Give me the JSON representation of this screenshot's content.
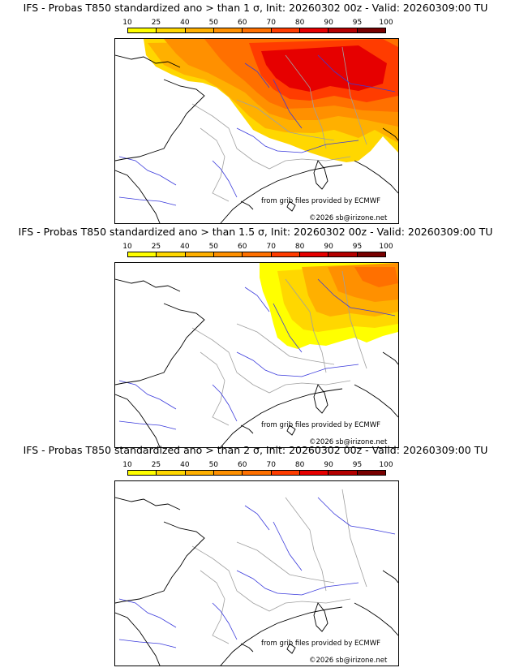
{
  "colorbar": {
    "ticks": [
      "10",
      "25",
      "40",
      "50",
      "60",
      "70",
      "80",
      "90",
      "95",
      "100"
    ],
    "colors": [
      "#ffff00",
      "#ffd700",
      "#ffb000",
      "#ff9000",
      "#ff7000",
      "#ff3c00",
      "#e60000",
      "#b40000",
      "#780000"
    ]
  },
  "credits": {
    "source": "from grib files provided by ECMWF",
    "copyright": "©2026 sb@irizone.net"
  },
  "panels": [
    {
      "title": "IFS - Probas T850  standardized ano > than 1 σ, Init: 20260302 00z - Valid: 20260309:00 TU"
    },
    {
      "title": "IFS - Probas T850  standardized ano > than 1.5 σ, Init: 20260302 00z - Valid: 20260309:00 TU"
    },
    {
      "title": "IFS - Probas T850  standardized ano > than 2 σ, Init: 20260302 00z - Valid: 20260309:00 TU"
    }
  ]
}
